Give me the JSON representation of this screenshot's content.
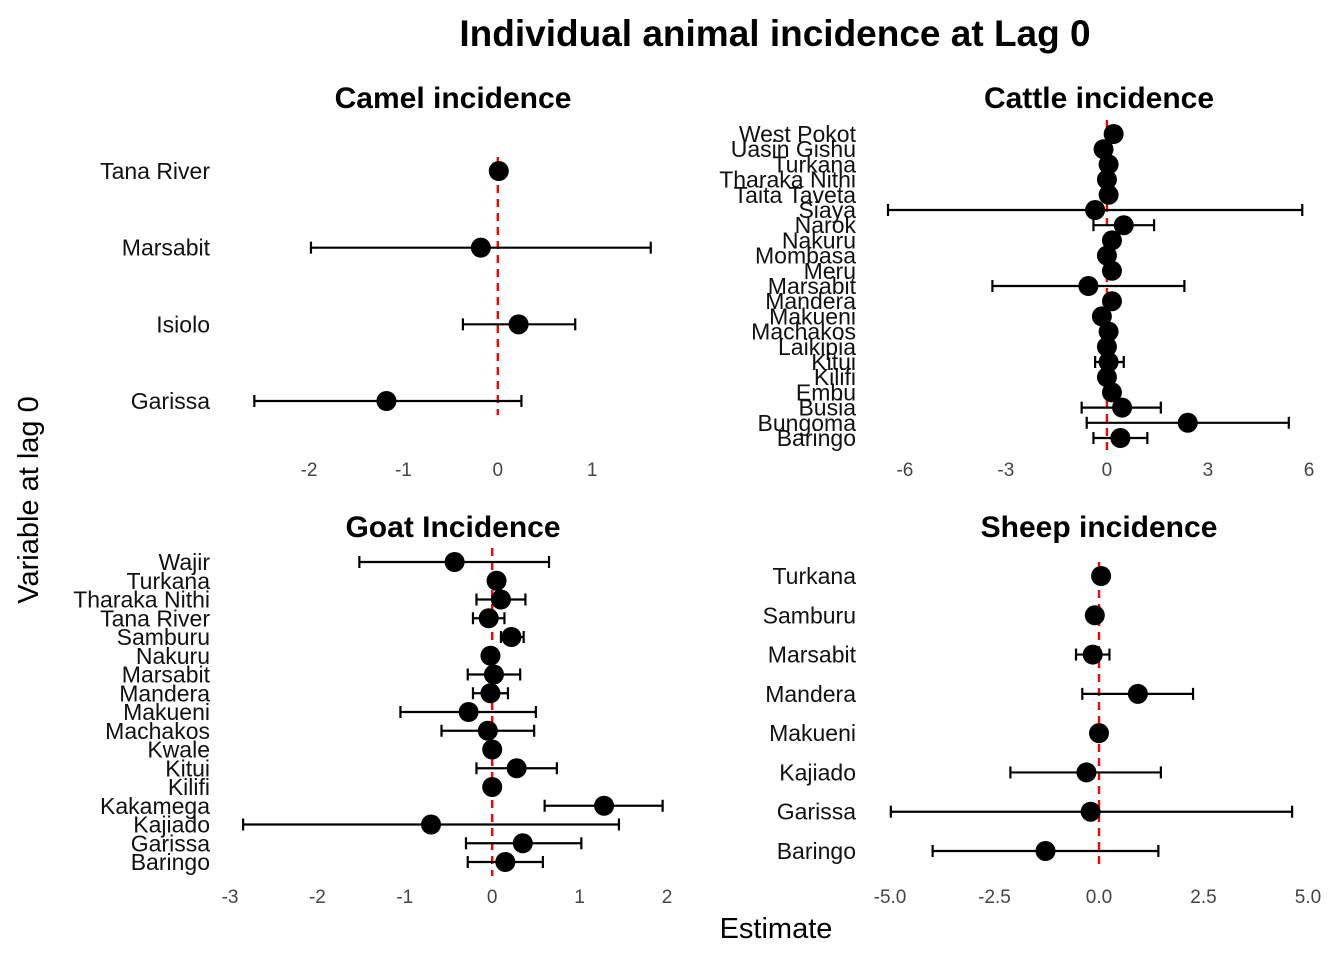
{
  "figure": {
    "title": "Individual animal incidence at Lag 0",
    "xlabel": "Estimate",
    "ylabel": "Variable at lag 0"
  },
  "colors": {
    "point": "#000000",
    "errorbar": "#000000",
    "reference_line": "#ff0000"
  },
  "chart_data": [
    {
      "type": "scatter",
      "subtype": "coefficient-plot",
      "title": "Camel incidence",
      "xlim": [
        -2.7,
        1.75
      ],
      "xticks": [
        -2,
        -1,
        0,
        1
      ],
      "reference_x": 0,
      "categories": [
        "Garissa",
        "Isiolo",
        "Marsabit",
        "Tana River"
      ],
      "estimates": [
        -1.18,
        0.22,
        -0.18,
        0.01
      ],
      "lower": [
        -2.58,
        -0.37,
        -1.98,
        0.01
      ],
      "upper": [
        0.25,
        0.82,
        1.62,
        0.01
      ]
    },
    {
      "type": "scatter",
      "subtype": "coefficient-plot",
      "title": "Cattle incidence",
      "xlim": [
        -6.5,
        6.0
      ],
      "xticks": [
        -6,
        -3,
        0,
        3,
        6
      ],
      "reference_x": 0,
      "categories": [
        "Baringo",
        "Bungoma",
        "Busia",
        "Embu",
        "Kilifi",
        "Kitui",
        "Laikipia",
        "Machakos",
        "Makueni",
        "Mandera",
        "Marsabit",
        "Meru",
        "Mombasa",
        "Nakuru",
        "Narok",
        "Siaya",
        "Taita Taveta",
        "Tharaka Nithi",
        "Turkana",
        "Uasin Gishu",
        "West Pokot"
      ],
      "estimates": [
        0.4,
        2.4,
        0.45,
        0.15,
        0.0,
        0.05,
        0.0,
        0.05,
        -0.15,
        0.15,
        -0.55,
        0.15,
        0.0,
        0.15,
        0.5,
        -0.35,
        0.05,
        0.0,
        0.05,
        -0.1,
        0.2
      ],
      "lower": [
        -0.4,
        -0.6,
        -0.75,
        0.15,
        0.0,
        -0.35,
        0.0,
        0.05,
        -0.15,
        0.15,
        -3.4,
        0.15,
        0.0,
        0.15,
        -0.4,
        -6.5,
        0.05,
        0.0,
        0.05,
        -0.1,
        0.2
      ],
      "upper": [
        1.2,
        5.4,
        1.6,
        0.15,
        0.0,
        0.5,
        0.0,
        0.05,
        -0.15,
        0.15,
        2.3,
        0.15,
        0.0,
        0.15,
        1.4,
        5.8,
        0.05,
        0.0,
        0.05,
        -0.1,
        0.2
      ]
    },
    {
      "type": "scatter",
      "subtype": "coefficient-plot",
      "title": "Goat Incidence",
      "xlim": [
        -3.0,
        2.0
      ],
      "xticks": [
        -3,
        -2,
        -1,
        0,
        1,
        2
      ],
      "reference_x": 0,
      "categories": [
        "Baringo",
        "Garissa",
        "Kajiado",
        "Kakamega",
        "Kilifi",
        "Kitui",
        "Kwale",
        "Machakos",
        "Makueni",
        "Mandera",
        "Marsabit",
        "Nakuru",
        "Samburu",
        "Tana River",
        "Tharaka Nithi",
        "Turkana",
        "Wajir"
      ],
      "estimates": [
        0.15,
        0.35,
        -0.7,
        1.28,
        0.0,
        0.28,
        0.0,
        -0.05,
        -0.27,
        -0.02,
        0.02,
        -0.02,
        0.22,
        -0.04,
        0.1,
        0.05,
        -0.43
      ],
      "lower": [
        -0.28,
        -0.3,
        -2.85,
        0.6,
        0.0,
        -0.18,
        0.0,
        -0.58,
        -1.05,
        -0.22,
        -0.28,
        -0.02,
        0.1,
        -0.22,
        -0.18,
        0.05,
        -1.52
      ],
      "upper": [
        0.58,
        1.02,
        1.45,
        1.95,
        0.0,
        0.74,
        0.0,
        0.48,
        0.5,
        0.18,
        0.32,
        -0.02,
        0.36,
        0.14,
        0.38,
        0.05,
        0.65
      ]
    },
    {
      "type": "scatter",
      "subtype": "coefficient-plot",
      "title": "Sheep incidence",
      "xlim": [
        -5.0,
        5.0
      ],
      "xticks": [
        -5,
        -2.5,
        0,
        2.5,
        5
      ],
      "xticklabels": [
        "-5.0",
        "-2.5",
        "0.0",
        "2.5",
        "5.0"
      ],
      "reference_x": 0,
      "categories": [
        "Baringo",
        "Garissa",
        "Kajiado",
        "Makueni",
        "Mandera",
        "Marsabit",
        "Samburu",
        "Turkana"
      ],
      "estimates": [
        -1.28,
        -0.2,
        -0.3,
        0.0,
        0.93,
        -0.15,
        -0.1,
        0.05
      ],
      "lower": [
        -3.98,
        -4.98,
        -2.12,
        0.0,
        -0.4,
        -0.55,
        -0.1,
        0.05
      ],
      "upper": [
        1.42,
        4.62,
        1.48,
        0.0,
        2.25,
        0.25,
        -0.1,
        0.05
      ]
    }
  ]
}
